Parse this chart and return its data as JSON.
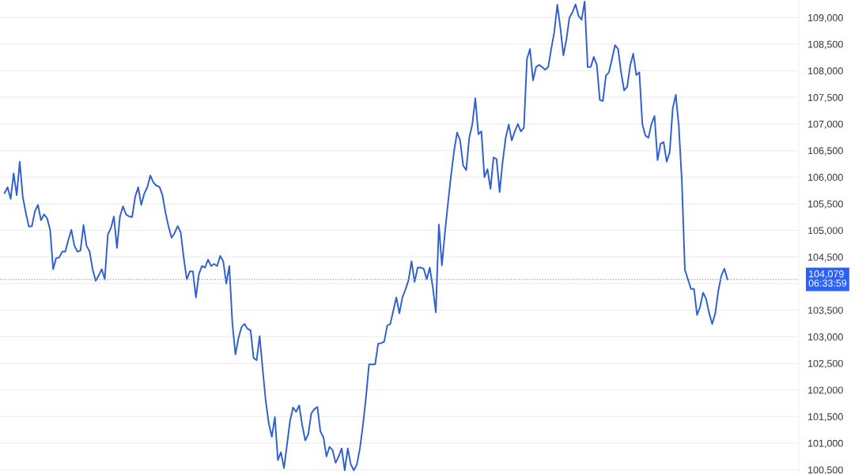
{
  "chart_data": {
    "type": "line",
    "categories": [
      null,
      null,
      null,
      null,
      null,
      null,
      null,
      null,
      null,
      null,
      null,
      null,
      null,
      null,
      null,
      null,
      null,
      null,
      null,
      null,
      null,
      null,
      null,
      null,
      null,
      null,
      null,
      null,
      null,
      null,
      null,
      null,
      null,
      null,
      null,
      null,
      null,
      null,
      null,
      null,
      null,
      null,
      null,
      null,
      null,
      null,
      null,
      null,
      null,
      null,
      null,
      null,
      null,
      null,
      null,
      null,
      null,
      null,
      null,
      null,
      null,
      null,
      null,
      null,
      null,
      null,
      null,
      null,
      null,
      null,
      null,
      null,
      null,
      null,
      null,
      null,
      null,
      null,
      null,
      null,
      null,
      null,
      null,
      null,
      null,
      null,
      null,
      null,
      null,
      null,
      null,
      null,
      null,
      null,
      null,
      null,
      null,
      null,
      null,
      null,
      null,
      null,
      null,
      null,
      null,
      null,
      null,
      null,
      null,
      null,
      null,
      null,
      null,
      null,
      null,
      null,
      null,
      null,
      null,
      null,
      null,
      null,
      null,
      null,
      null,
      null,
      null,
      null,
      null,
      null,
      null,
      null,
      null,
      null,
      null,
      null,
      null,
      null,
      null,
      null,
      null,
      null,
      null,
      null,
      null,
      null,
      null,
      null,
      null,
      null,
      null,
      null,
      null,
      null,
      null,
      null,
      null,
      null,
      null,
      null,
      null,
      null,
      null,
      null,
      null,
      null,
      null,
      null,
      null,
      null,
      null,
      null,
      null,
      null,
      null,
      null,
      null,
      null,
      null,
      null,
      null,
      null,
      null,
      null,
      null,
      null,
      null,
      null,
      null,
      null,
      null,
      null,
      null,
      null,
      null,
      null,
      null,
      null,
      null,
      null,
      null,
      null,
      null,
      null,
      null,
      null,
      null,
      null,
      null,
      null,
      null,
      null,
      null,
      null,
      null,
      null,
      null,
      null,
      null,
      null,
      null,
      null,
      null,
      null,
      null,
      null,
      null,
      null,
      null,
      null,
      null,
      null,
      null,
      null,
      null,
      null,
      null,
      null,
      null,
      null,
      null,
      null,
      null,
      null,
      null,
      null,
      null,
      null,
      null,
      null,
      null,
      null,
      null,
      null,
      null,
      null,
      null,
      null,
      null,
      null,
      null,
      null,
      null
    ],
    "series": [
      {
        "color": "#2f5fd0",
        "values": [
          null,
          105700,
          105810,
          105590,
          106070,
          105660,
          106290,
          105630,
          105330,
          105070,
          105080,
          105360,
          105480,
          105190,
          105300,
          105230,
          105010,
          104270,
          104480,
          104490,
          104600,
          104600,
          104820,
          105010,
          104710,
          104600,
          104620,
          105100,
          104710,
          104600,
          104270,
          104050,
          104150,
          104270,
          104080,
          104920,
          105040,
          105260,
          104670,
          105260,
          105450,
          105300,
          105260,
          105250,
          105630,
          105810,
          105480,
          105690,
          105810,
          106030,
          105900,
          105840,
          105820,
          105660,
          105330,
          105070,
          104860,
          104950,
          105080,
          104960,
          104480,
          104080,
          104230,
          104230,
          103740,
          104180,
          104330,
          104300,
          104450,
          104330,
          104370,
          104330,
          104520,
          104420,
          104000,
          104330,
          103260,
          102670,
          102970,
          103180,
          103240,
          103150,
          103120,
          102600,
          102560,
          103010,
          102380,
          101790,
          101370,
          101120,
          101490,
          100680,
          100830,
          100530,
          100970,
          101420,
          101670,
          101590,
          101710,
          101340,
          101050,
          101170,
          101560,
          101640,
          101680,
          101220,
          101110,
          100750,
          100930,
          100870,
          100630,
          100750,
          100900,
          100490,
          100900,
          100600,
          100490,
          100600,
          100900,
          101340,
          101860,
          102480,
          102480,
          102480,
          102870,
          102880,
          102910,
          103210,
          103240,
          103490,
          103740,
          103440,
          103740,
          103890,
          104060,
          104420,
          104030,
          104300,
          104300,
          104280,
          104080,
          104300,
          103930,
          103460,
          105110,
          104340,
          104960,
          105510,
          106030,
          106490,
          106840,
          106690,
          106220,
          106130,
          106740,
          106990,
          107480,
          106810,
          106860,
          106000,
          106150,
          105780,
          106370,
          106340,
          105720,
          106290,
          106740,
          106990,
          106690,
          106860,
          107000,
          106860,
          106930,
          108220,
          108410,
          107820,
          108070,
          108110,
          108070,
          108020,
          108070,
          108410,
          108730,
          109240,
          108810,
          108290,
          108590,
          109000,
          109100,
          109250,
          109030,
          108960,
          109300,
          108070,
          108070,
          108260,
          108110,
          107450,
          107430,
          107910,
          107970,
          108220,
          108480,
          108410,
          107970,
          107630,
          107700,
          108100,
          108320,
          107920,
          107970,
          107000,
          106780,
          106740,
          107000,
          107150,
          106320,
          106630,
          106660,
          106290,
          106470,
          107290,
          107550,
          106960,
          105930,
          104260,
          104080,
          103900,
          103900,
          103410,
          103560,
          103830,
          103710,
          103440,
          103240,
          103440,
          103860,
          104150,
          104280,
          104080,
          null,
          null,
          null,
          null,
          null,
          null,
          null,
          null,
          null,
          null,
          null,
          null,
          null,
          null,
          null,
          null,
          null,
          null,
          null,
          null,
          null,
          null,
          null
        ]
      }
    ],
    "ylim": [
      100420,
      109330
    ],
    "yticks": [
      {
        "value": 100500,
        "label": "100,500"
      },
      {
        "value": 101000,
        "label": "101,000"
      },
      {
        "value": 101500,
        "label": "101,500"
      },
      {
        "value": 102000,
        "label": "102,000"
      },
      {
        "value": 102500,
        "label": "102,500"
      },
      {
        "value": 103000,
        "label": "103,000"
      },
      {
        "value": 103500,
        "label": "103,500"
      },
      {
        "value": 104000,
        "label": null
      },
      {
        "value": 104500,
        "label": "104,500"
      },
      {
        "value": 105000,
        "label": "105,000"
      },
      {
        "value": 105500,
        "label": "105,500"
      },
      {
        "value": 106000,
        "label": "106,000"
      },
      {
        "value": 106500,
        "label": "106,500"
      },
      {
        "value": 107000,
        "label": "107,000"
      },
      {
        "value": 107500,
        "label": "107,500"
      },
      {
        "value": 108000,
        "label": "108,000"
      },
      {
        "value": 108500,
        "label": "108,500"
      },
      {
        "value": 109000,
        "label": "109,000"
      }
    ],
    "ref_lines": [
      {
        "axis": "y",
        "value": 104079,
        "label": "104,079",
        "color": "#9aa0aa",
        "line_style": "dotted"
      }
    ],
    "annotations": [
      "06:33:59"
    ],
    "grid": "y",
    "marker": "none",
    "line_style": "solid"
  }
}
